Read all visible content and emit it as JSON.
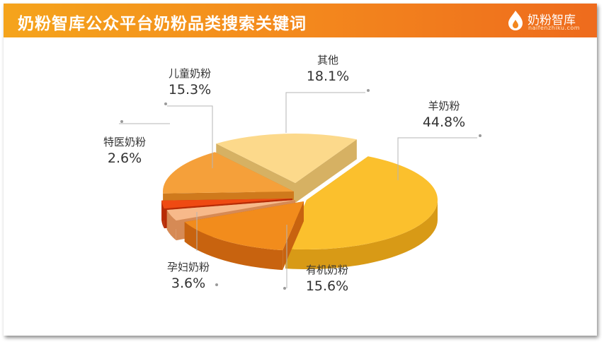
{
  "header": {
    "title": "奶粉智库公众平台奶粉品类搜索关键词",
    "logo_name": "奶粉智库",
    "logo_domain": "naifenzhiku.com"
  },
  "colors": {
    "banner_start": "#f5a41c",
    "banner_end": "#ee6b1d"
  },
  "chart_data": {
    "type": "pie",
    "style": "3d-exploded",
    "title": "",
    "slices": [
      {
        "label": "羊奶粉",
        "value": 44.8,
        "value_label": "44.8%",
        "color": "#fbc02d",
        "side": "#d89a16"
      },
      {
        "label": "有机奶粉",
        "value": 15.6,
        "value_label": "15.6%",
        "color": "#f28c1c",
        "side": "#c8630f"
      },
      {
        "label": "孕妇奶粉",
        "value": 3.6,
        "value_label": "3.6%",
        "color": "#f7b98a",
        "side": "#d68a55"
      },
      {
        "label": "特医奶粉",
        "value": 2.6,
        "value_label": "2.6%",
        "color": "#ef4a12",
        "side": "#b72c06"
      },
      {
        "label": "儿童奶粉",
        "value": 15.3,
        "value_label": "15.3%",
        "color": "#f5a03a",
        "side": "#cf7a1c"
      },
      {
        "label": "其他",
        "value": 18.1,
        "value_label": "18.1%",
        "color": "#fcd98b",
        "side": "#d6b163"
      }
    ]
  }
}
